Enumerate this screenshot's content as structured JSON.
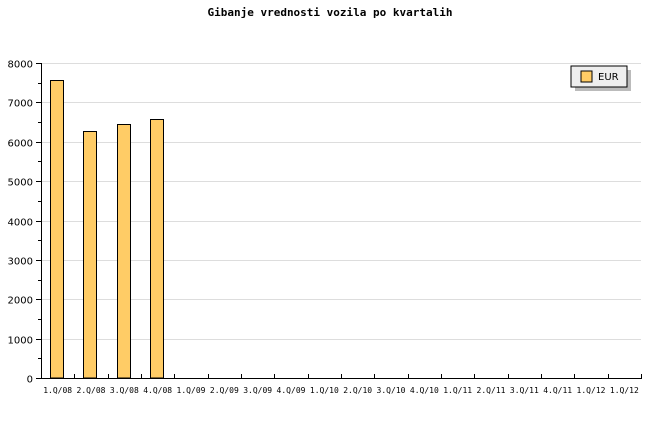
{
  "chart_data": {
    "type": "bar",
    "title": "Gibanje vrednosti vozila po kvartalih",
    "categories": [
      "1.Q/08",
      "2.Q/08",
      "3.Q/08",
      "4.Q/08",
      "1.Q/09",
      "2.Q/09",
      "3.Q/09",
      "4.Q/09",
      "1.Q/10",
      "2.Q/10",
      "3.Q/10",
      "4.Q/10",
      "1.Q/11",
      "2.Q/11",
      "3.Q/11",
      "4.Q/11",
      "1.Q/12",
      "1.Q/12"
    ],
    "series": [
      {
        "name": "EUR",
        "color": "#ffcc66",
        "values": [
          7570,
          6270,
          6460,
          6590,
          null,
          null,
          null,
          null,
          null,
          null,
          null,
          null,
          null,
          null,
          null,
          null,
          null,
          null
        ]
      }
    ],
    "ylim": [
      0,
      8000
    ],
    "yticks": [
      0,
      1000,
      2000,
      3000,
      4000,
      5000,
      6000,
      7000,
      8000
    ],
    "grid": true,
    "legend": "top-right",
    "xlabel": "",
    "ylabel": ""
  }
}
